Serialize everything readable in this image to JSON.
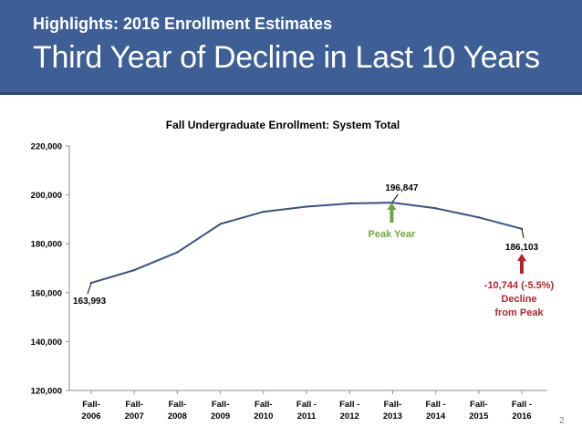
{
  "header": {
    "subtitle": "Highlights: 2016 Enrollment Estimates",
    "title": "Third Year of Decline in Last 10 Years"
  },
  "page_number": "2",
  "colors": {
    "header_bg": "#3d5f96",
    "line": "#3a5283",
    "peak": "#72a541",
    "decline": "#b3262e"
  },
  "chart_data": {
    "type": "line",
    "title": "Fall Undergraduate Enrollment: System Total",
    "categories": [
      "Fall-\n2006",
      "Fall-\n2007",
      "Fall-\n2008",
      "Fall-\n2009",
      "Fall-\n2010",
      "Fall -\n2011",
      "Fall -\n2012",
      "Fall-\n2013",
      "Fall -\n2014",
      "Fall-\n2015",
      "Fall -\n2016"
    ],
    "values": [
      163993,
      169200,
      176500,
      188100,
      193100,
      195200,
      196500,
      196847,
      194500,
      190800,
      186103
    ],
    "ylim": [
      120000,
      220000
    ],
    "yticks": [
      "220,000",
      "200,000",
      "180,000",
      "160,000",
      "140,000",
      "120,000"
    ],
    "ytick_values": [
      220000,
      200000,
      180000,
      160000,
      140000,
      120000
    ],
    "grid": false,
    "data_labels": [
      {
        "index": 0,
        "text": "163,993"
      },
      {
        "index": 7,
        "text": "196,847"
      },
      {
        "index": 10,
        "text": "186,103"
      }
    ],
    "annotations": {
      "peak": {
        "index": 7,
        "text": "Peak Year"
      },
      "decline": {
        "index": 10,
        "line1": "-10,744 (-5.5%)",
        "line2": "Decline",
        "line3": "from Peak"
      }
    }
  }
}
